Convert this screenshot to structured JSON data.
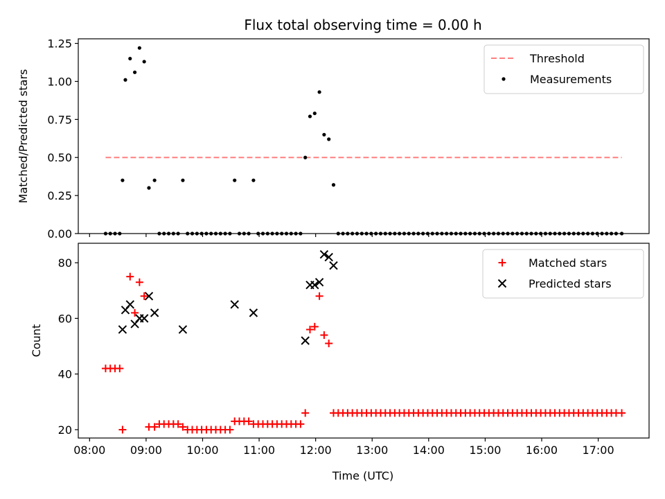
{
  "chart_data": {
    "type": "scatter",
    "title": "Flux total observing time = 0.00 h",
    "xlabel": "Time (UTC)",
    "x_ticks": [
      "08:00",
      "09:00",
      "10:00",
      "11:00",
      "12:00",
      "13:00",
      "14:00",
      "15:00",
      "16:00",
      "17:00"
    ],
    "xlim_hours": [
      7.8,
      17.9
    ],
    "panels": [
      {
        "ylabel": "Matched/Predicted stars",
        "ylim": [
          0,
          1.28
        ],
        "y_ticks": [
          "0.00",
          "0.25",
          "0.50",
          "0.75",
          "1.00",
          "1.25"
        ],
        "legend_position": "top-right",
        "threshold": {
          "name": "Threshold",
          "value": 0.5,
          "x_range": [
            "08:17",
            "17:25"
          ],
          "color": "#ff7f7f"
        },
        "series": [
          {
            "name": "Measurements",
            "color": "#000000",
            "marker": "dot",
            "points": [
              [
                "08:17",
                0
              ],
              [
                "08:22",
                0
              ],
              [
                "08:27",
                0
              ],
              [
                "08:32",
                0
              ],
              [
                "08:35",
                0.35
              ],
              [
                "08:38",
                1.01
              ],
              [
                "08:43",
                1.15
              ],
              [
                "08:48",
                1.06
              ],
              [
                "08:53",
                1.22
              ],
              [
                "08:58",
                1.13
              ],
              [
                "09:03",
                0.3
              ],
              [
                "09:09",
                0.35
              ],
              [
                "09:14",
                0
              ],
              [
                "09:19",
                0
              ],
              [
                "09:24",
                0
              ],
              [
                "09:29",
                0
              ],
              [
                "09:34",
                0
              ],
              [
                "09:39",
                0.35
              ],
              [
                "09:44",
                0
              ],
              [
                "09:49",
                0
              ],
              [
                "09:54",
                0
              ],
              [
                "09:59",
                0
              ],
              [
                "10:04",
                0
              ],
              [
                "10:09",
                0
              ],
              [
                "10:14",
                0
              ],
              [
                "10:19",
                0
              ],
              [
                "10:24",
                0
              ],
              [
                "10:29",
                0
              ],
              [
                "10:34",
                0.35
              ],
              [
                "10:39",
                0
              ],
              [
                "10:44",
                0
              ],
              [
                "10:49",
                0
              ],
              [
                "10:54",
                0.35
              ],
              [
                "10:59",
                0
              ],
              [
                "11:04",
                0
              ],
              [
                "11:09",
                0
              ],
              [
                "11:14",
                0
              ],
              [
                "11:19",
                0
              ],
              [
                "11:24",
                0
              ],
              [
                "11:29",
                0
              ],
              [
                "11:34",
                0
              ],
              [
                "11:39",
                0
              ],
              [
                "11:44",
                0
              ],
              [
                "11:49",
                0.5
              ],
              [
                "11:54",
                0.77
              ],
              [
                "11:59",
                0.79
              ],
              [
                "12:04",
                0.93
              ],
              [
                "12:09",
                0.65
              ],
              [
                "12:14",
                0.62
              ],
              [
                "12:19",
                0.32
              ],
              [
                "12:24",
                0
              ],
              [
                "12:29",
                0
              ],
              [
                "12:34",
                0
              ],
              [
                "12:39",
                0
              ],
              [
                "12:44",
                0
              ],
              [
                "12:49",
                0
              ],
              [
                "12:54",
                0
              ],
              [
                "12:59",
                0
              ],
              [
                "13:04",
                0
              ],
              [
                "13:09",
                0
              ],
              [
                "13:14",
                0
              ],
              [
                "13:19",
                0
              ],
              [
                "13:24",
                0
              ],
              [
                "13:29",
                0
              ],
              [
                "13:34",
                0
              ],
              [
                "13:39",
                0
              ],
              [
                "13:44",
                0
              ],
              [
                "13:49",
                0
              ],
              [
                "13:54",
                0
              ],
              [
                "13:59",
                0
              ],
              [
                "14:04",
                0
              ],
              [
                "14:09",
                0
              ],
              [
                "14:14",
                0
              ],
              [
                "14:19",
                0
              ],
              [
                "14:24",
                0
              ],
              [
                "14:29",
                0
              ],
              [
                "14:34",
                0
              ],
              [
                "14:39",
                0
              ],
              [
                "14:44",
                0
              ],
              [
                "14:49",
                0
              ],
              [
                "14:54",
                0
              ],
              [
                "14:59",
                0
              ],
              [
                "15:04",
                0
              ],
              [
                "15:09",
                0
              ],
              [
                "15:14",
                0
              ],
              [
                "15:19",
                0
              ],
              [
                "15:24",
                0
              ],
              [
                "15:29",
                0
              ],
              [
                "15:34",
                0
              ],
              [
                "15:39",
                0
              ],
              [
                "15:44",
                0
              ],
              [
                "15:49",
                0
              ],
              [
                "15:54",
                0
              ],
              [
                "15:59",
                0
              ],
              [
                "16:04",
                0
              ],
              [
                "16:09",
                0
              ],
              [
                "16:14",
                0
              ],
              [
                "16:19",
                0
              ],
              [
                "16:24",
                0
              ],
              [
                "16:29",
                0
              ],
              [
                "16:34",
                0
              ],
              [
                "16:39",
                0
              ],
              [
                "16:44",
                0
              ],
              [
                "16:49",
                0
              ],
              [
                "16:54",
                0
              ],
              [
                "16:59",
                0
              ],
              [
                "17:04",
                0
              ],
              [
                "17:09",
                0
              ],
              [
                "17:14",
                0
              ],
              [
                "17:19",
                0
              ],
              [
                "17:25",
                0
              ]
            ]
          }
        ]
      },
      {
        "ylabel": "Count",
        "ylim": [
          17,
          87
        ],
        "y_ticks": [
          "20",
          "40",
          "60",
          "80"
        ],
        "legend_position": "top-right",
        "series": [
          {
            "name": "Matched stars",
            "color": "#ff0000",
            "marker": "plus",
            "points": [
              [
                "08:17",
                42
              ],
              [
                "08:22",
                42
              ],
              [
                "08:27",
                42
              ],
              [
                "08:32",
                42
              ],
              [
                "08:35",
                20
              ],
              [
                "08:43",
                75
              ],
              [
                "08:48",
                62
              ],
              [
                "08:53",
                73
              ],
              [
                "08:58",
                68
              ],
              [
                "09:03",
                21
              ],
              [
                "09:09",
                21
              ],
              [
                "09:14",
                22
              ],
              [
                "09:19",
                22
              ],
              [
                "09:24",
                22
              ],
              [
                "09:29",
                22
              ],
              [
                "09:34",
                22
              ],
              [
                "09:39",
                21
              ],
              [
                "09:44",
                20
              ],
              [
                "09:49",
                20
              ],
              [
                "09:54",
                20
              ],
              [
                "09:59",
                20
              ],
              [
                "10:04",
                20
              ],
              [
                "10:09",
                20
              ],
              [
                "10:14",
                20
              ],
              [
                "10:19",
                20
              ],
              [
                "10:24",
                20
              ],
              [
                "10:29",
                20
              ],
              [
                "10:34",
                23
              ],
              [
                "10:39",
                23
              ],
              [
                "10:44",
                23
              ],
              [
                "10:49",
                23
              ],
              [
                "10:54",
                22
              ],
              [
                "10:59",
                22
              ],
              [
                "11:04",
                22
              ],
              [
                "11:09",
                22
              ],
              [
                "11:14",
                22
              ],
              [
                "11:19",
                22
              ],
              [
                "11:24",
                22
              ],
              [
                "11:29",
                22
              ],
              [
                "11:34",
                22
              ],
              [
                "11:39",
                22
              ],
              [
                "11:44",
                22
              ],
              [
                "11:49",
                26
              ],
              [
                "11:54",
                56
              ],
              [
                "11:59",
                57
              ],
              [
                "12:04",
                68
              ],
              [
                "12:09",
                54
              ],
              [
                "12:14",
                51
              ],
              [
                "12:19",
                26
              ],
              [
                "12:24",
                26
              ],
              [
                "12:29",
                26
              ],
              [
                "12:34",
                26
              ],
              [
                "12:39",
                26
              ],
              [
                "12:44",
                26
              ],
              [
                "12:49",
                26
              ],
              [
                "12:54",
                26
              ],
              [
                "12:59",
                26
              ],
              [
                "13:04",
                26
              ],
              [
                "13:09",
                26
              ],
              [
                "13:14",
                26
              ],
              [
                "13:19",
                26
              ],
              [
                "13:24",
                26
              ],
              [
                "13:29",
                26
              ],
              [
                "13:34",
                26
              ],
              [
                "13:39",
                26
              ],
              [
                "13:44",
                26
              ],
              [
                "13:49",
                26
              ],
              [
                "13:54",
                26
              ],
              [
                "13:59",
                26
              ],
              [
                "14:04",
                26
              ],
              [
                "14:09",
                26
              ],
              [
                "14:14",
                26
              ],
              [
                "14:19",
                26
              ],
              [
                "14:24",
                26
              ],
              [
                "14:29",
                26
              ],
              [
                "14:34",
                26
              ],
              [
                "14:39",
                26
              ],
              [
                "14:44",
                26
              ],
              [
                "14:49",
                26
              ],
              [
                "14:54",
                26
              ],
              [
                "14:59",
                26
              ],
              [
                "15:04",
                26
              ],
              [
                "15:09",
                26
              ],
              [
                "15:14",
                26
              ],
              [
                "15:19",
                26
              ],
              [
                "15:24",
                26
              ],
              [
                "15:29",
                26
              ],
              [
                "15:34",
                26
              ],
              [
                "15:39",
                26
              ],
              [
                "15:44",
                26
              ],
              [
                "15:49",
                26
              ],
              [
                "15:54",
                26
              ],
              [
                "15:59",
                26
              ],
              [
                "16:04",
                26
              ],
              [
                "16:09",
                26
              ],
              [
                "16:14",
                26
              ],
              [
                "16:19",
                26
              ],
              [
                "16:24",
                26
              ],
              [
                "16:29",
                26
              ],
              [
                "16:34",
                26
              ],
              [
                "16:39",
                26
              ],
              [
                "16:44",
                26
              ],
              [
                "16:49",
                26
              ],
              [
                "16:54",
                26
              ],
              [
                "16:59",
                26
              ],
              [
                "17:04",
                26
              ],
              [
                "17:09",
                26
              ],
              [
                "17:14",
                26
              ],
              [
                "17:19",
                26
              ],
              [
                "17:25",
                26
              ]
            ]
          },
          {
            "name": "Predicted stars",
            "color": "#000000",
            "marker": "x",
            "points": [
              [
                "08:35",
                56
              ],
              [
                "08:38",
                63
              ],
              [
                "08:43",
                65
              ],
              [
                "08:48",
                58
              ],
              [
                "08:53",
                60
              ],
              [
                "08:58",
                60
              ],
              [
                "09:03",
                68
              ],
              [
                "09:09",
                62
              ],
              [
                "09:39",
                56
              ],
              [
                "10:34",
                65
              ],
              [
                "10:54",
                62
              ],
              [
                "11:49",
                52
              ],
              [
                "11:54",
                72
              ],
              [
                "11:59",
                72
              ],
              [
                "12:04",
                73
              ],
              [
                "12:09",
                83
              ],
              [
                "12:14",
                82
              ],
              [
                "12:19",
                79
              ]
            ]
          }
        ]
      }
    ]
  }
}
